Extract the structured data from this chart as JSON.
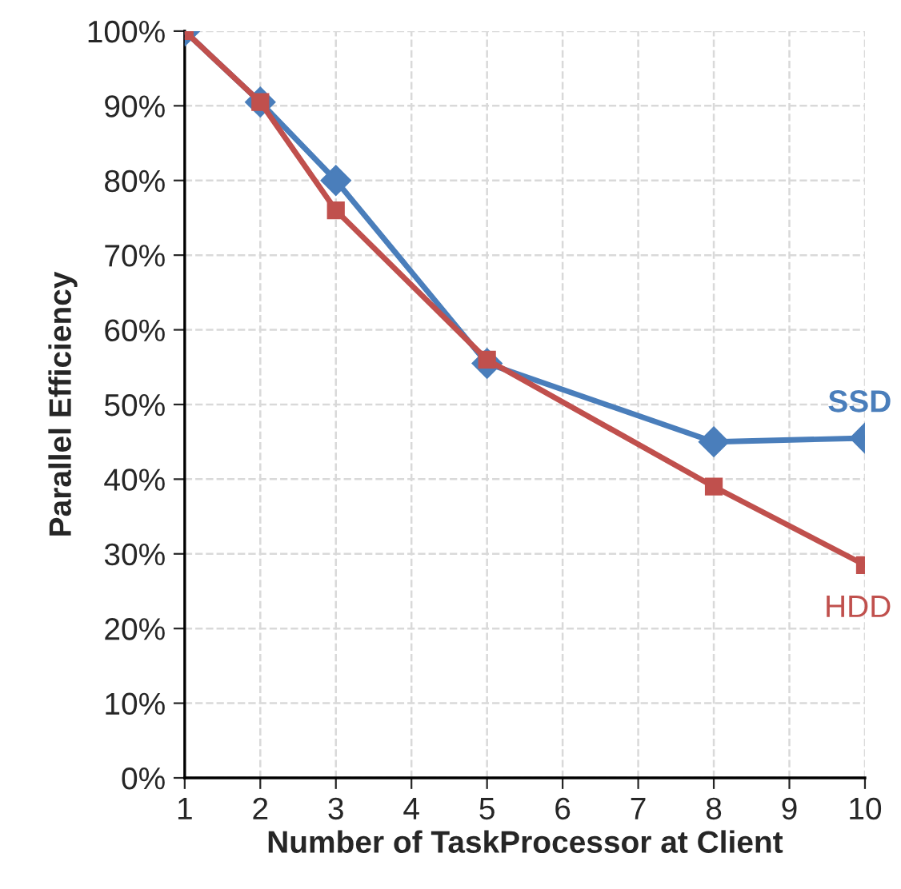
{
  "chart_data": {
    "type": "line",
    "xlabel": "Number of TaskProcessor at Client",
    "ylabel": "Parallel Efficiency",
    "xlim": [
      1,
      10
    ],
    "xticks": [
      1,
      2,
      3,
      4,
      5,
      6,
      7,
      8,
      9,
      10
    ],
    "ylim": [
      0,
      100
    ],
    "yticks": [
      {
        "value": 0,
        "label": "0%"
      },
      {
        "value": 10,
        "label": "10%"
      },
      {
        "value": 20,
        "label": "20%"
      },
      {
        "value": 30,
        "label": "30%"
      },
      {
        "value": 40,
        "label": "40%"
      },
      {
        "value": 50,
        "label": "50%"
      },
      {
        "value": 60,
        "label": "60%"
      },
      {
        "value": 70,
        "label": "70%"
      },
      {
        "value": 80,
        "label": "80%"
      },
      {
        "value": 90,
        "label": "90%"
      },
      {
        "value": 100,
        "label": "100%"
      }
    ],
    "grid": true,
    "legend": false,
    "line_style": "solid",
    "series": [
      {
        "name": "SSD",
        "color": "#4a7ebb",
        "marker": "diamond",
        "x": [
          1,
          2,
          3,
          5,
          8,
          10
        ],
        "values": [
          100,
          90.5,
          80,
          55.5,
          45,
          45.5
        ]
      },
      {
        "name": "HDD",
        "color": "#c0504d",
        "marker": "square",
        "x": [
          1,
          2,
          3,
          5,
          8,
          10
        ],
        "values": [
          100,
          90.5,
          76,
          56,
          39,
          28.5
        ]
      }
    ]
  }
}
